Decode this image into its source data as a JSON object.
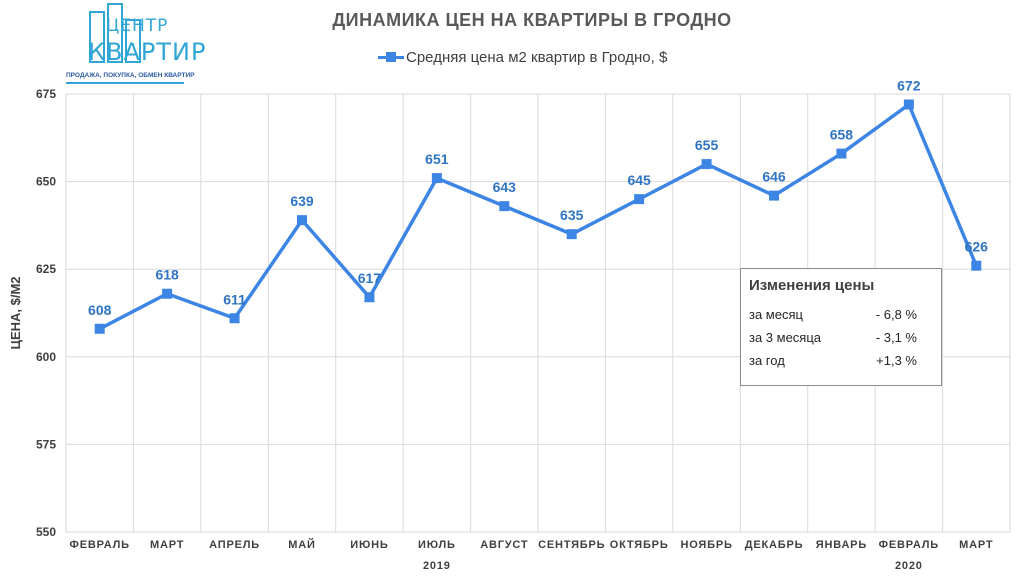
{
  "logo": {
    "line1": "ЦЕНТР",
    "line2": "КВАРТИР",
    "tagline": "ПРОДАЖА, ПОКУПКА, ОБМЕН КВАРТИР"
  },
  "chart_data": {
    "type": "line",
    "title": "ДИНАМИКА ЦЕН НА КВАРТИРЫ В ГРОДНО",
    "ylabel": "ЦЕНА, $/М2",
    "xlabel": "",
    "categories": [
      "ФЕВРАЛЬ",
      "МАРТ",
      "АПРЕЛЬ",
      "МАЙ",
      "ИЮНЬ",
      "ИЮЛЬ",
      "АВГУСТ",
      "СЕНТЯБРЬ",
      "ОКТЯБРЬ",
      "НОЯБРЬ",
      "ДЕКАБРЬ",
      "ЯНВАРЬ",
      "ФЕВРАЛЬ",
      "МАРТ"
    ],
    "year_labels": [
      {
        "text": "2019",
        "category_index": 5
      },
      {
        "text": "2020",
        "category_index": 12
      }
    ],
    "series": [
      {
        "name": "Средняя цена м2 квартир в Гродно, $",
        "values": [
          608,
          618,
          611,
          639,
          617,
          651,
          643,
          635,
          645,
          655,
          646,
          658,
          672,
          626
        ]
      }
    ],
    "ylim": [
      550,
      675
    ],
    "yticks": [
      550,
      575,
      600,
      625,
      650,
      675
    ],
    "grid": true,
    "legend": "top-center",
    "colors": {
      "series": "#3d85e4",
      "labels": "#2f75c4",
      "grid": "#d9d9d9",
      "axis_text": "#404040"
    }
  },
  "info_box": {
    "title": "Изменения цены",
    "rows": [
      {
        "label": "за месяц",
        "value": "- 6,8 %"
      },
      {
        "label": "за 3 месяца",
        "value": "- 3,1 %"
      },
      {
        "label": "за год",
        "value": "+1,3 %"
      }
    ]
  }
}
